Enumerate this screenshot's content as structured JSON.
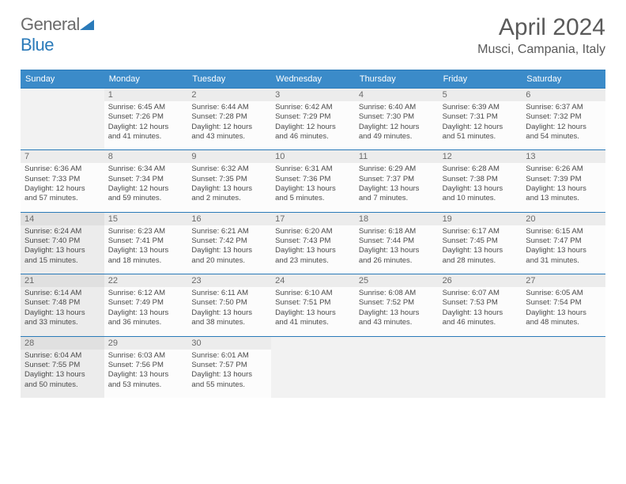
{
  "logo": {
    "part1": "General",
    "part2": "Blue"
  },
  "title": "April 2024",
  "location": "Musci, Campania, Italy",
  "colors": {
    "header_bg": "#3b8bc9",
    "border": "#2a7ab9",
    "shaded": "#ececec",
    "daybar": "#ececec",
    "text": "#4a4a4a"
  },
  "day_headers": [
    "Sunday",
    "Monday",
    "Tuesday",
    "Wednesday",
    "Thursday",
    "Friday",
    "Saturday"
  ],
  "weeks": [
    [
      {
        "empty": true
      },
      {
        "n": "1",
        "sr": "Sunrise: 6:45 AM",
        "ss": "Sunset: 7:26 PM",
        "d1": "Daylight: 12 hours",
        "d2": "and 41 minutes."
      },
      {
        "n": "2",
        "sr": "Sunrise: 6:44 AM",
        "ss": "Sunset: 7:28 PM",
        "d1": "Daylight: 12 hours",
        "d2": "and 43 minutes."
      },
      {
        "n": "3",
        "sr": "Sunrise: 6:42 AM",
        "ss": "Sunset: 7:29 PM",
        "d1": "Daylight: 12 hours",
        "d2": "and 46 minutes."
      },
      {
        "n": "4",
        "sr": "Sunrise: 6:40 AM",
        "ss": "Sunset: 7:30 PM",
        "d1": "Daylight: 12 hours",
        "d2": "and 49 minutes."
      },
      {
        "n": "5",
        "sr": "Sunrise: 6:39 AM",
        "ss": "Sunset: 7:31 PM",
        "d1": "Daylight: 12 hours",
        "d2": "and 51 minutes."
      },
      {
        "n": "6",
        "sr": "Sunrise: 6:37 AM",
        "ss": "Sunset: 7:32 PM",
        "d1": "Daylight: 12 hours",
        "d2": "and 54 minutes."
      }
    ],
    [
      {
        "n": "7",
        "sr": "Sunrise: 6:36 AM",
        "ss": "Sunset: 7:33 PM",
        "d1": "Daylight: 12 hours",
        "d2": "and 57 minutes."
      },
      {
        "n": "8",
        "sr": "Sunrise: 6:34 AM",
        "ss": "Sunset: 7:34 PM",
        "d1": "Daylight: 12 hours",
        "d2": "and 59 minutes."
      },
      {
        "n": "9",
        "sr": "Sunrise: 6:32 AM",
        "ss": "Sunset: 7:35 PM",
        "d1": "Daylight: 13 hours",
        "d2": "and 2 minutes."
      },
      {
        "n": "10",
        "sr": "Sunrise: 6:31 AM",
        "ss": "Sunset: 7:36 PM",
        "d1": "Daylight: 13 hours",
        "d2": "and 5 minutes."
      },
      {
        "n": "11",
        "sr": "Sunrise: 6:29 AM",
        "ss": "Sunset: 7:37 PM",
        "d1": "Daylight: 13 hours",
        "d2": "and 7 minutes."
      },
      {
        "n": "12",
        "sr": "Sunrise: 6:28 AM",
        "ss": "Sunset: 7:38 PM",
        "d1": "Daylight: 13 hours",
        "d2": "and 10 minutes."
      },
      {
        "n": "13",
        "sr": "Sunrise: 6:26 AM",
        "ss": "Sunset: 7:39 PM",
        "d1": "Daylight: 13 hours",
        "d2": "and 13 minutes."
      }
    ],
    [
      {
        "n": "14",
        "shaded": true,
        "sr": "Sunrise: 6:24 AM",
        "ss": "Sunset: 7:40 PM",
        "d1": "Daylight: 13 hours",
        "d2": "and 15 minutes."
      },
      {
        "n": "15",
        "sr": "Sunrise: 6:23 AM",
        "ss": "Sunset: 7:41 PM",
        "d1": "Daylight: 13 hours",
        "d2": "and 18 minutes."
      },
      {
        "n": "16",
        "sr": "Sunrise: 6:21 AM",
        "ss": "Sunset: 7:42 PM",
        "d1": "Daylight: 13 hours",
        "d2": "and 20 minutes."
      },
      {
        "n": "17",
        "sr": "Sunrise: 6:20 AM",
        "ss": "Sunset: 7:43 PM",
        "d1": "Daylight: 13 hours",
        "d2": "and 23 minutes."
      },
      {
        "n": "18",
        "sr": "Sunrise: 6:18 AM",
        "ss": "Sunset: 7:44 PM",
        "d1": "Daylight: 13 hours",
        "d2": "and 26 minutes."
      },
      {
        "n": "19",
        "sr": "Sunrise: 6:17 AM",
        "ss": "Sunset: 7:45 PM",
        "d1": "Daylight: 13 hours",
        "d2": "and 28 minutes."
      },
      {
        "n": "20",
        "sr": "Sunrise: 6:15 AM",
        "ss": "Sunset: 7:47 PM",
        "d1": "Daylight: 13 hours",
        "d2": "and 31 minutes."
      }
    ],
    [
      {
        "n": "21",
        "shaded": true,
        "sr": "Sunrise: 6:14 AM",
        "ss": "Sunset: 7:48 PM",
        "d1": "Daylight: 13 hours",
        "d2": "and 33 minutes."
      },
      {
        "n": "22",
        "sr": "Sunrise: 6:12 AM",
        "ss": "Sunset: 7:49 PM",
        "d1": "Daylight: 13 hours",
        "d2": "and 36 minutes."
      },
      {
        "n": "23",
        "sr": "Sunrise: 6:11 AM",
        "ss": "Sunset: 7:50 PM",
        "d1": "Daylight: 13 hours",
        "d2": "and 38 minutes."
      },
      {
        "n": "24",
        "sr": "Sunrise: 6:10 AM",
        "ss": "Sunset: 7:51 PM",
        "d1": "Daylight: 13 hours",
        "d2": "and 41 minutes."
      },
      {
        "n": "25",
        "sr": "Sunrise: 6:08 AM",
        "ss": "Sunset: 7:52 PM",
        "d1": "Daylight: 13 hours",
        "d2": "and 43 minutes."
      },
      {
        "n": "26",
        "sr": "Sunrise: 6:07 AM",
        "ss": "Sunset: 7:53 PM",
        "d1": "Daylight: 13 hours",
        "d2": "and 46 minutes."
      },
      {
        "n": "27",
        "sr": "Sunrise: 6:05 AM",
        "ss": "Sunset: 7:54 PM",
        "d1": "Daylight: 13 hours",
        "d2": "and 48 minutes."
      }
    ],
    [
      {
        "n": "28",
        "shaded": true,
        "sr": "Sunrise: 6:04 AM",
        "ss": "Sunset: 7:55 PM",
        "d1": "Daylight: 13 hours",
        "d2": "and 50 minutes."
      },
      {
        "n": "29",
        "sr": "Sunrise: 6:03 AM",
        "ss": "Sunset: 7:56 PM",
        "d1": "Daylight: 13 hours",
        "d2": "and 53 minutes."
      },
      {
        "n": "30",
        "sr": "Sunrise: 6:01 AM",
        "ss": "Sunset: 7:57 PM",
        "d1": "Daylight: 13 hours",
        "d2": "and 55 minutes."
      },
      {
        "empty": true
      },
      {
        "empty": true
      },
      {
        "empty": true
      },
      {
        "empty": true
      }
    ]
  ]
}
